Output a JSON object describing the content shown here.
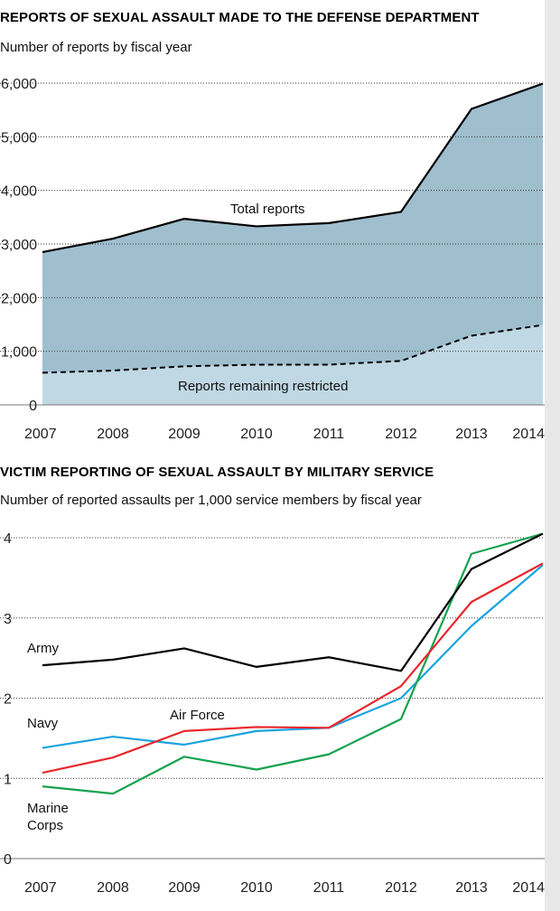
{
  "chart_data": [
    {
      "type": "area",
      "title": "REPORTS OF SEXUAL ASSAULT MADE TO THE DEFENSE DEPARTMENT",
      "subtitle": "Number of reports by fiscal year",
      "xlabel": "",
      "ylabel": "",
      "x": [
        "2007",
        "2008",
        "2009",
        "2010",
        "2011",
        "2012",
        "2013",
        "2014"
      ],
      "ylim": [
        0,
        6000
      ],
      "y_ticks": [
        "0",
        "1,000",
        "2,000",
        "3,000",
        "4,000",
        "5,000",
        "6,000"
      ],
      "grid": true,
      "series": [
        {
          "name": "Total reports",
          "values": [
            2850,
            3100,
            3470,
            3330,
            3390,
            3600,
            5520,
            5990
          ],
          "color": "#9fbfcf",
          "line_color": "#000000"
        },
        {
          "name": "Reports remaining restricted",
          "values": [
            600,
            640,
            720,
            750,
            750,
            820,
            1290,
            1490
          ],
          "color": "#c0d8e3",
          "line_color": "#000000"
        }
      ]
    },
    {
      "type": "line",
      "title": "VICTIM REPORTING OF SEXUAL ASSAULT BY MILITARY SERVICE",
      "subtitle": "Number of reported assaults per 1,000 service members by fiscal year",
      "xlabel": "",
      "ylabel": "",
      "x": [
        "2007",
        "2008",
        "2009",
        "2010",
        "2011",
        "2012",
        "2013",
        "2014"
      ],
      "ylim": [
        0,
        4
      ],
      "y_ticks": [
        "0",
        "1",
        "2",
        "3",
        "4"
      ],
      "grid": true,
      "series": [
        {
          "name": "Army",
          "values": [
            2.41,
            2.48,
            2.62,
            2.39,
            2.51,
            2.34,
            3.61,
            4.05
          ],
          "color": "#000000"
        },
        {
          "name": "Air Force",
          "values": [
            1.07,
            1.26,
            1.59,
            1.64,
            1.63,
            2.15,
            3.2,
            3.68
          ],
          "color": "#e8262c"
        },
        {
          "name": "Navy",
          "values": [
            1.38,
            1.52,
            1.42,
            1.59,
            1.63,
            2.0,
            2.9,
            3.66
          ],
          "color": "#1aa3e0"
        },
        {
          "name": "Marine\nCorps",
          "label_lines": [
            "Marine",
            "Corps"
          ],
          "values": [
            0.9,
            0.81,
            1.27,
            1.11,
            1.3,
            1.74,
            3.8,
            4.05
          ],
          "color": "#16a24f"
        }
      ]
    }
  ]
}
